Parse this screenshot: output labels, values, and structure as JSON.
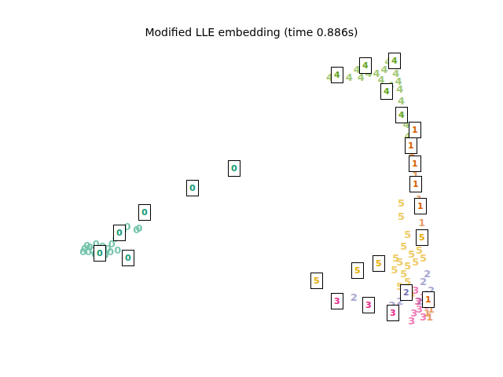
{
  "chart_data": {
    "type": "scatter",
    "title": "Modified LLE embedding (time 0.886s)",
    "marker": "text",
    "tick_labels": false,
    "xlim": [
      -0.05,
      1.05
    ],
    "ylim": [
      -0.05,
      1.05
    ],
    "series": [
      {
        "name": "0",
        "color": "#1b9e77",
        "x": [
          0.011,
          0.022,
          0.033,
          0.04,
          0.048,
          0.055,
          0.062,
          0.066,
          0.077,
          0.088,
          0.099,
          0.11,
          0.121,
          0.132,
          0.127,
          0.143,
          0.158,
          0.044,
          0.026,
          0.07,
          0.084,
          0.105,
          0.165,
          0.18,
          0.316,
          0.433,
          0.007,
          0.018
        ],
        "y": [
          0.275,
          0.263,
          0.269,
          0.254,
          0.275,
          0.263,
          0.284,
          0.269,
          0.275,
          0.293,
          0.313,
          0.328,
          0.343,
          0.358,
          0.254,
          0.245,
          0.346,
          0.293,
          0.281,
          0.251,
          0.263,
          0.269,
          0.352,
          0.418,
          0.51,
          0.582,
          0.263,
          0.287
        ]
      },
      {
        "name": "1",
        "color": "#d95f02",
        "x": [
          0.934,
          0.927,
          0.934,
          0.941,
          0.945,
          0.952,
          0.956,
          0.963,
          0.963,
          0.956,
          0.978,
          0.989,
          0.993,
          0.985,
          0.923
        ],
        "y": [
          0.731,
          0.687,
          0.642,
          0.597,
          0.552,
          0.507,
          0.463,
          0.418,
          0.373,
          0.328,
          0.03,
          0.045,
          0.075,
          0.015,
          0.672
        ]
      },
      {
        "name": "2",
        "color": "#7570b3",
        "x": [
          0.967,
          0.978,
          0.967,
          0.989,
          0.956,
          0.771,
          0.879,
          0.901,
          0.978
        ],
        "y": [
          0.313,
          0.179,
          0.149,
          0.119,
          0.075,
          0.09,
          0.06,
          0.075,
          0.104
        ]
      },
      {
        "name": "3",
        "color": "#e7298a",
        "x": [
          0.945,
          0.967,
          0.978,
          0.956,
          0.941,
          0.967,
          0.989,
          0.952,
          0.934
        ],
        "y": [
          0.119,
          0.09,
          0.06,
          0.045,
          0.03,
          0.015,
          0.09,
          0.075,
          0.0
        ]
      },
      {
        "name": "4",
        "color": "#66a61e",
        "x": [
          0.703,
          0.73,
          0.758,
          0.791,
          0.813,
          0.835,
          0.857,
          0.868,
          0.879,
          0.884,
          0.89,
          0.897,
          0.901,
          0.905,
          0.912,
          0.919,
          0.923,
          0.78,
          0.848,
          0.875
        ],
        "y": [
          0.925,
          0.934,
          0.925,
          0.925,
          0.94,
          0.94,
          0.955,
          0.985,
          1.0,
          0.97,
          0.94,
          0.91,
          0.881,
          0.836,
          0.791,
          0.746,
          0.701,
          0.955,
          0.916,
          0.896
        ]
      },
      {
        "name": "5",
        "color": "#e6ab02",
        "x": [
          0.905,
          0.905,
          0.923,
          0.912,
          0.89,
          0.901,
          0.923,
          0.945,
          0.934,
          0.967,
          0.912,
          0.923,
          0.901,
          0.934,
          0.956,
          0.886
        ],
        "y": [
          0.448,
          0.397,
          0.328,
          0.284,
          0.239,
          0.224,
          0.209,
          0.224,
          0.254,
          0.239,
          0.179,
          0.149,
          0.134,
          0.104,
          0.269,
          0.194
        ]
      }
    ],
    "thumbnails": [
      {
        "label": "0",
        "x": 0.433,
        "y": 0.582
      },
      {
        "label": "0",
        "x": 0.316,
        "y": 0.51
      },
      {
        "label": "0",
        "x": 0.18,
        "y": 0.418
      },
      {
        "label": "0",
        "x": 0.11,
        "y": 0.34
      },
      {
        "label": "0",
        "x": 0.055,
        "y": 0.263
      },
      {
        "label": "0",
        "x": 0.134,
        "y": 0.245
      },
      {
        "label": "4",
        "x": 0.725,
        "y": 0.937
      },
      {
        "label": "4",
        "x": 0.804,
        "y": 0.973
      },
      {
        "label": "4",
        "x": 0.886,
        "y": 0.991
      },
      {
        "label": "4",
        "x": 0.864,
        "y": 0.875
      },
      {
        "label": "4",
        "x": 0.905,
        "y": 0.785
      },
      {
        "label": "1",
        "x": 0.943,
        "y": 0.731
      },
      {
        "label": "1",
        "x": 0.932,
        "y": 0.669
      },
      {
        "label": "1",
        "x": 0.943,
        "y": 0.6
      },
      {
        "label": "1",
        "x": 0.945,
        "y": 0.525
      },
      {
        "label": "1",
        "x": 0.958,
        "y": 0.439
      },
      {
        "label": "1",
        "x": 0.982,
        "y": 0.087
      },
      {
        "label": "5",
        "x": 0.666,
        "y": 0.158
      },
      {
        "label": "5",
        "x": 0.782,
        "y": 0.197
      },
      {
        "label": "5",
        "x": 0.842,
        "y": 0.224
      },
      {
        "label": "5",
        "x": 0.963,
        "y": 0.322
      },
      {
        "label": "3",
        "x": 0.725,
        "y": 0.081
      },
      {
        "label": "3",
        "x": 0.813,
        "y": 0.066
      },
      {
        "label": "3",
        "x": 0.881,
        "y": 0.036
      },
      {
        "label": "2",
        "x": 0.919,
        "y": 0.113
      }
    ]
  }
}
